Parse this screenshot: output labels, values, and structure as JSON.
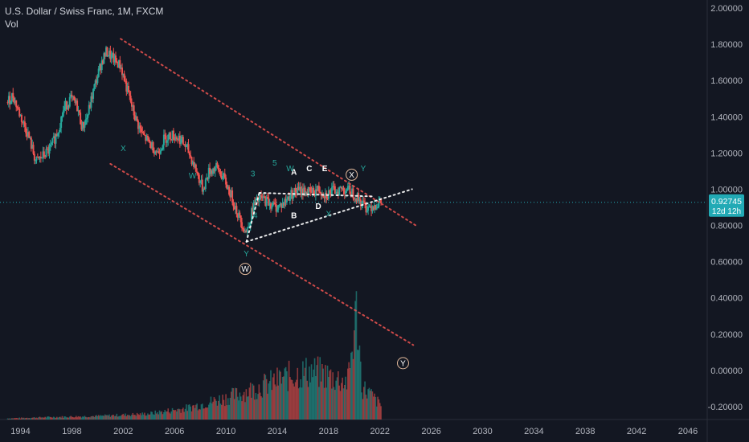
{
  "legend": {
    "title": "U.S. Dollar / Swiss Franc, 1M, FXCM",
    "volume_label": "Vol"
  },
  "colors": {
    "background": "#131722",
    "up": "#26a69a",
    "down": "#ef5350",
    "channel": "#ef5350",
    "triangle": "#ffffff",
    "wave_teal": "#26a69a",
    "wave_white": "#ffffff",
    "price_tag": "#22aab5",
    "axis_text": "#b2b5be"
  },
  "price_tag": {
    "price": "0.92745",
    "countdown": "12d 12h"
  },
  "chart_data": {
    "type": "candlestick",
    "title": "U.S. Dollar / Swiss Franc, 1M, FXCM",
    "xlabel": "",
    "ylabel": "",
    "x_ticks": [
      "1994",
      "1998",
      "2002",
      "2006",
      "2010",
      "2014",
      "2018",
      "2022",
      "2026",
      "2030",
      "2034",
      "2038",
      "2042",
      "2046"
    ],
    "y_ticks": [
      "2.00000",
      "1.80000",
      "1.60000",
      "1.40000",
      "1.20000",
      "1.00000",
      "0.80000",
      "0.60000",
      "0.40000",
      "0.20000",
      "0.00000",
      "-0.20000"
    ],
    "xlim": [
      1992.4,
      2047.5
    ],
    "ylim": [
      -0.24,
      2.0
    ],
    "grid": false,
    "last_price": 0.92745,
    "price_path": [
      [
        1993.0,
        1.48
      ],
      [
        1993.4,
        1.52
      ],
      [
        1993.9,
        1.42
      ],
      [
        1994.6,
        1.3
      ],
      [
        1995.2,
        1.15
      ],
      [
        1995.7,
        1.18
      ],
      [
        1996.3,
        1.22
      ],
      [
        1996.9,
        1.32
      ],
      [
        1997.4,
        1.45
      ],
      [
        1997.9,
        1.5
      ],
      [
        1998.4,
        1.46
      ],
      [
        1998.8,
        1.34
      ],
      [
        1999.2,
        1.4
      ],
      [
        1999.7,
        1.55
      ],
      [
        2000.3,
        1.7
      ],
      [
        2000.7,
        1.76
      ],
      [
        2001.2,
        1.72
      ],
      [
        2001.8,
        1.68
      ],
      [
        2002.3,
        1.55
      ],
      [
        2002.9,
        1.4
      ],
      [
        2003.5,
        1.3
      ],
      [
        2004.1,
        1.25
      ],
      [
        2004.7,
        1.2
      ],
      [
        2005.2,
        1.28
      ],
      [
        2005.8,
        1.3
      ],
      [
        2006.4,
        1.28
      ],
      [
        2007.0,
        1.22
      ],
      [
        2007.6,
        1.12
      ],
      [
        2008.2,
        1.0
      ],
      [
        2008.7,
        1.1
      ],
      [
        2009.3,
        1.12
      ],
      [
        2009.9,
        1.05
      ],
      [
        2010.5,
        0.95
      ],
      [
        2011.0,
        0.85
      ],
      [
        2011.6,
        0.76
      ],
      [
        2012.2,
        0.92
      ],
      [
        2012.8,
        0.95
      ],
      [
        2013.3,
        0.93
      ],
      [
        2013.9,
        0.9
      ],
      [
        2014.5,
        0.92
      ],
      [
        2015.0,
        0.97
      ],
      [
        2015.5,
        0.99
      ],
      [
        2016.1,
        0.99
      ],
      [
        2016.7,
        0.98
      ],
      [
        2017.2,
        1.0
      ],
      [
        2017.8,
        0.97
      ],
      [
        2018.3,
        0.99
      ],
      [
        2018.9,
        1.0
      ],
      [
        2019.4,
        1.0
      ],
      [
        2019.9,
        0.98
      ],
      [
        2020.4,
        0.94
      ],
      [
        2020.9,
        0.9
      ],
      [
        2021.4,
        0.91
      ],
      [
        2021.9,
        0.92
      ],
      [
        2022.1,
        0.927
      ]
    ],
    "volume_path": [
      [
        1993.0,
        0.01
      ],
      [
        1996.0,
        0.02
      ],
      [
        2000.0,
        0.03
      ],
      [
        2004.0,
        0.05
      ],
      [
        2007.0,
        0.1
      ],
      [
        2009.0,
        0.16
      ],
      [
        2011.0,
        0.22
      ],
      [
        2013.0,
        0.3
      ],
      [
        2015.0,
        0.38
      ],
      [
        2016.5,
        0.42
      ],
      [
        2017.5,
        0.4
      ],
      [
        2018.5,
        0.36
      ],
      [
        2019.5,
        0.33
      ],
      [
        2020.2,
        0.95
      ],
      [
        2020.6,
        0.28
      ],
      [
        2021.0,
        0.25
      ],
      [
        2022.1,
        0.12
      ]
    ],
    "trendlines": [
      {
        "name": "upper-channel",
        "from": [
          2001.8,
          1.83
        ],
        "to": [
          2024.8,
          0.8
        ]
      },
      {
        "name": "lower-channel",
        "from": [
          2001.0,
          1.14
        ],
        "to": [
          2024.6,
          0.14
        ]
      },
      {
        "name": "triangle-support",
        "from": [
          2011.6,
          0.71
        ],
        "to": [
          2024.5,
          1.0
        ]
      },
      {
        "name": "triangle-resistance",
        "from": [
          2012.6,
          0.98
        ],
        "to": [
          2021.6,
          0.96
        ]
      },
      {
        "name": "triangle-upper-left",
        "from": [
          2011.6,
          0.71
        ],
        "to": [
          2012.6,
          0.98
        ]
      }
    ],
    "wave_labels": [
      {
        "text": "W",
        "x": 2007.4,
        "y": 1.06,
        "color": "teal"
      },
      {
        "text": "X",
        "x": 2002.0,
        "y": 1.21,
        "color": "teal"
      },
      {
        "text": "Y",
        "x": 2011.6,
        "y": 0.63,
        "color": "teal"
      },
      {
        "text": "3",
        "x": 2012.1,
        "y": 1.07,
        "color": "teal"
      },
      {
        "text": "5",
        "x": 2013.8,
        "y": 1.13,
        "color": "teal"
      },
      {
        "text": "4",
        "x": 2012.3,
        "y": 0.84,
        "color": "teal"
      },
      {
        "text": "W",
        "x": 2015.0,
        "y": 1.1,
        "color": "teal"
      },
      {
        "text": "X",
        "x": 2018.0,
        "y": 0.85,
        "color": "teal"
      },
      {
        "text": "Y",
        "x": 2020.7,
        "y": 1.1,
        "color": "teal"
      },
      {
        "text": "A",
        "x": 2015.3,
        "y": 1.08,
        "color": "white"
      },
      {
        "text": "B",
        "x": 2015.3,
        "y": 0.84,
        "color": "white"
      },
      {
        "text": "C",
        "x": 2016.5,
        "y": 1.1,
        "color": "white"
      },
      {
        "text": "D",
        "x": 2017.2,
        "y": 0.89,
        "color": "white"
      },
      {
        "text": "E",
        "x": 2017.7,
        "y": 1.1,
        "color": "white"
      }
    ],
    "circled_labels": [
      {
        "text": "W",
        "x": 2011.5,
        "y": 0.56
      },
      {
        "text": "X",
        "x": 2019.8,
        "y": 1.08
      },
      {
        "text": "Y",
        "x": 2023.8,
        "y": 0.04
      }
    ]
  }
}
